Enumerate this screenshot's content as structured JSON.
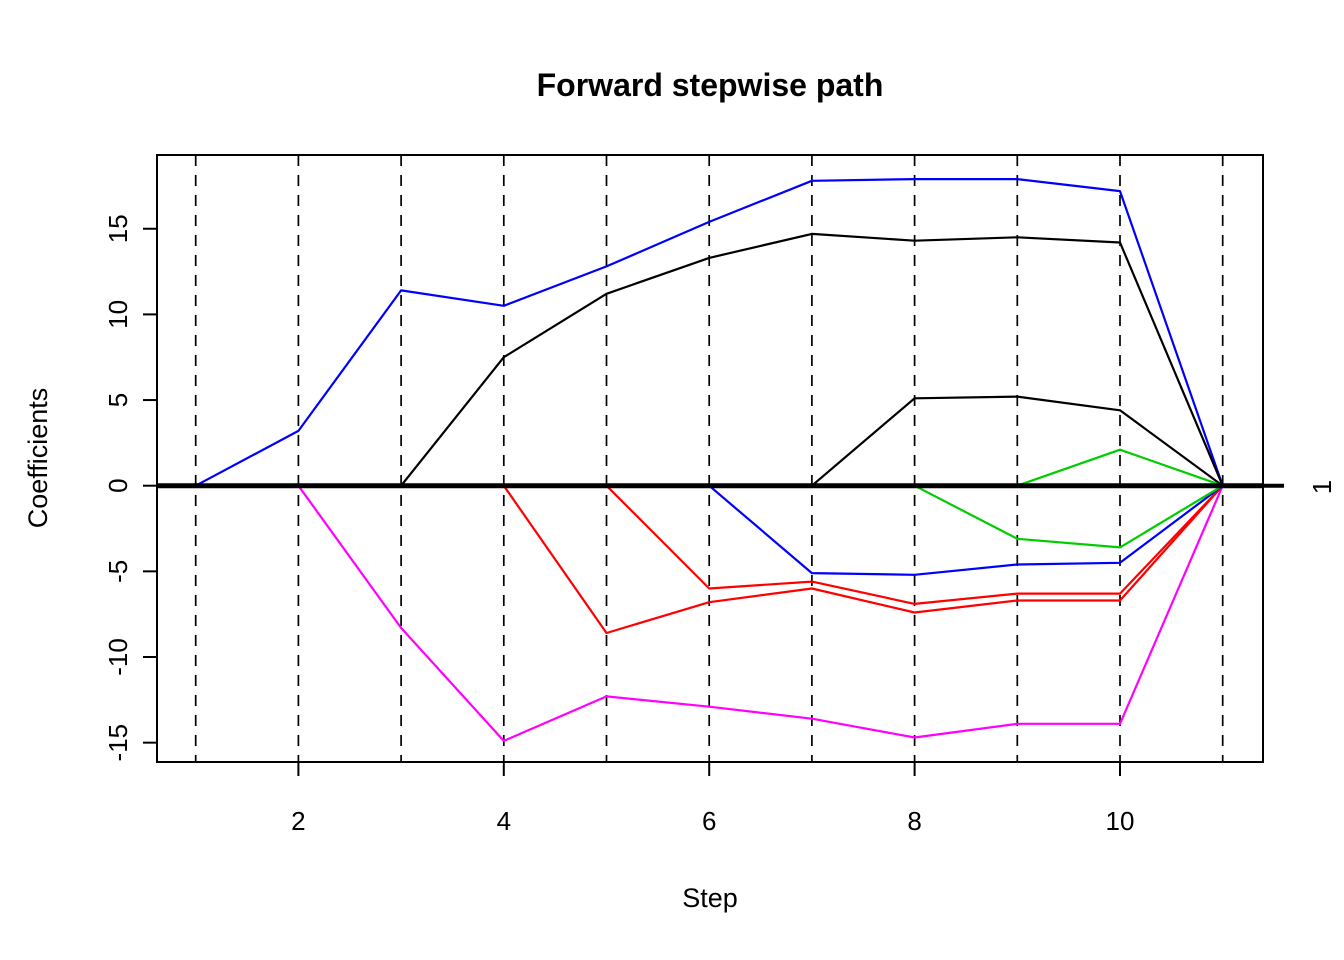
{
  "page": {
    "background": "#FFFFFF"
  },
  "chart_data": {
    "type": "line",
    "title": "Forward stepwise path",
    "xlabel": "Step",
    "ylabel": "Coefficients",
    "right_axis_label": "1",
    "right_axis_label_at": 0,
    "x_ticks": [
      2,
      4,
      6,
      8,
      10
    ],
    "y_ticks": [
      -15,
      -10,
      -5,
      0,
      5,
      10,
      15
    ],
    "step_gridlines": [
      1,
      2,
      3,
      4,
      5,
      6,
      7,
      8,
      9,
      10,
      11
    ],
    "xlim": [
      0.62,
      11.4
    ],
    "ylim": [
      -16.1,
      19.3
    ],
    "grid": "vertical-dashed",
    "zero_line": true,
    "legend": "none",
    "colors": {
      "black": "#000000",
      "red": "#FF0000",
      "green": "#00CD00",
      "blue": "#0000FF",
      "magenta": "#FF00FF"
    },
    "series": [
      {
        "name": "coef-blue-1",
        "color": "#0000FF",
        "start_step": 1,
        "values": [
          0,
          3.2,
          11.4,
          10.5,
          12.8,
          15.4,
          17.8,
          17.9,
          17.9,
          17.2,
          0
        ]
      },
      {
        "name": "coef-magenta-1",
        "color": "#FF00FF",
        "start_step": 2,
        "values": [
          0,
          -8.3,
          -14.9,
          -12.3,
          -12.9,
          -13.6,
          -14.7,
          -13.9,
          -13.9,
          0
        ]
      },
      {
        "name": "coef-black-1",
        "color": "#000000",
        "start_step": 3,
        "values": [
          0,
          7.5,
          11.2,
          13.3,
          14.7,
          14.3,
          14.5,
          14.2,
          0
        ]
      },
      {
        "name": "coef-red-1",
        "color": "#FF0000",
        "start_step": 4,
        "values": [
          0,
          -8.6,
          -6.8,
          -6.0,
          -7.4,
          -6.7,
          -6.7,
          0
        ]
      },
      {
        "name": "coef-red-2",
        "color": "#FF0000",
        "start_step": 5,
        "values": [
          0,
          -6.0,
          -5.6,
          -6.9,
          -6.3,
          -6.3,
          0
        ]
      },
      {
        "name": "coef-blue-2",
        "color": "#0000FF",
        "start_step": 6,
        "values": [
          0,
          -5.1,
          -5.2,
          -4.6,
          -4.5,
          0
        ]
      },
      {
        "name": "coef-black-2",
        "color": "#000000",
        "start_step": 7,
        "values": [
          0,
          5.1,
          5.2,
          4.4,
          0
        ]
      },
      {
        "name": "coef-green-1",
        "color": "#00CD00",
        "start_step": 8,
        "values": [
          0,
          -3.1,
          -3.6,
          0
        ]
      },
      {
        "name": "coef-green-2",
        "color": "#00CD00",
        "start_step": 9,
        "values": [
          0,
          2.1,
          0
        ]
      }
    ]
  }
}
